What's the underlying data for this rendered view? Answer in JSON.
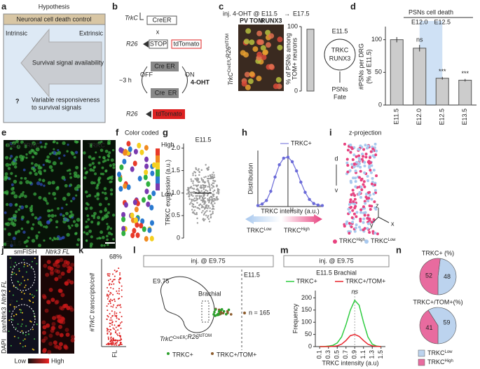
{
  "a": {
    "label": "a",
    "title": "Hypothesis",
    "header": "Neuronal cell death control",
    "intrinsic": "Intrinsic",
    "extrinsic": "Extrinsic",
    "arrow": "Survival signal availability",
    "question": "?",
    "note": [
      "Variable responsiveness",
      "to survival signals"
    ]
  },
  "b": {
    "label": "b",
    "trkc": "TrkC",
    "creer": "CreER",
    "cross": "x",
    "r26a": "R26",
    "stop": "STOP",
    "tdtomato_a": "tdTomato",
    "time": "~3 h",
    "off": "OFF",
    "on": "ON",
    "drug": "4-OHT",
    "cre_top": "Cre ER",
    "cre_bottom": [
      "Cre",
      "ER"
    ],
    "r26b": "R26",
    "tdtomato_b": "tdTomato"
  },
  "c": {
    "label": "c",
    "injection": "inj. 4-OHT @ E11.5",
    "arrow": "→",
    "end": "E17.5",
    "stains": [
      "PV",
      "TOM",
      "RUNX3"
    ],
    "genotype": [
      {
        "base": "TrkC",
        "sup": "CreER"
      },
      {
        "base": ";R26",
        "sup": "tdTOM"
      }
    ],
    "ylabel": [
      "% of PSNs among",
      "TOM+ neurons"
    ],
    "ylim": [
      0,
      100
    ],
    "yticks": [
      0,
      100
    ],
    "value": 96,
    "stage": "E11.5",
    "markers": [
      "TRKC",
      "RUNX3"
    ],
    "fate": [
      "PSNs",
      "Fate"
    ]
  },
  "d": {
    "label": "d",
    "title": "PSNs cell death",
    "shade": [
      "E12.0",
      "E12.5"
    ],
    "ylabel": [
      "#PSNs per DRG",
      "(% of E11.5)"
    ],
    "ylim": [
      0,
      120
    ],
    "yticks": [
      0,
      50,
      100
    ],
    "categories": [
      "E11.5",
      "E12.0",
      "E12.5",
      "E13.5"
    ],
    "values": [
      100,
      87,
      41,
      38
    ],
    "errors": [
      4,
      5,
      2,
      2
    ],
    "significance": [
      null,
      "ns",
      "***",
      "***"
    ]
  },
  "e": {
    "label": "e",
    "stain1": "ISL1",
    "stain2": "TRKC",
    "stain3": "TRKC",
    "stage": "E11.5"
  },
  "f": {
    "label": "f",
    "title": "Color coded",
    "high": "High",
    "low": "Low"
  },
  "g": {
    "label": "g",
    "stage": "E11.5",
    "ylabel": "TRKC expression (a.u.)",
    "ylim": [
      0,
      2.1
    ],
    "yticks": [
      0,
      0.5,
      {
        "value": 1,
        "label": "1.0"
      },
      1.5,
      {
        "value": 2,
        "label": "2.0"
      }
    ]
  },
  "h": {
    "label": "h",
    "legend": "TRKC+",
    "ylabel": "Distribution",
    "xlabel": "TRKC intensity (a.u.)",
    "mu": "μ",
    "values": [
      0.02,
      0.05,
      0.12,
      0.3,
      0.58,
      0.82,
      0.95,
      0.97,
      0.88,
      0.7,
      0.48,
      0.28,
      0.14,
      0.06,
      0.03,
      0.02
    ],
    "ylim": [
      0,
      1.1
    ],
    "low": {
      "base": "TRKC",
      "sup": "Low"
    },
    "high": {
      "base": "TRKC",
      "sup": "High"
    }
  },
  "i": {
    "label": "i",
    "title": "z-projection",
    "axes": [
      "d",
      "v",
      "x",
      "y",
      "z"
    ],
    "high": {
      "base": "TRKC",
      "sup": "High"
    },
    "low": {
      "base": "TRKC",
      "sup": "Low"
    }
  },
  "j": {
    "label": "j",
    "title": "smFISH",
    "stain": "Ntrk3 FL",
    "side": [
      "DAPI",
      "panNtrk3",
      "Ntrk3 FL"
    ],
    "insets": [
      "1",
      "2"
    ],
    "low": "Low",
    "high": "High"
  },
  "k": {
    "label": "k",
    "percent": "68%",
    "ylabel": "#TrkC transcripts/cell",
    "xlabel": "FL"
  },
  "l": {
    "label": "l",
    "injection": "inj. @ E9.75",
    "start": "E9.75",
    "end": "E11.5",
    "region": "Brachial",
    "n": "n = 165",
    "genotype": [
      {
        "base": "TrkC",
        "sup": "CreER"
      },
      {
        "base": ";R26",
        "sup": "tdTOM"
      }
    ],
    "legend": [
      "TRKC+",
      "TRKC+/TOM+"
    ]
  },
  "m": {
    "label": "m",
    "injection": "inj. @ E9.75",
    "subtitle": "E11.5 Brachial",
    "ns": "ns",
    "ylabel": "Frequency",
    "xlabel": "TRKC intensity (a.u)",
    "ylim": [
      0,
      230
    ],
    "yticks": [
      0,
      50,
      100,
      150,
      200
    ],
    "xlim": [
      0,
      1.6
    ],
    "xticks": [
      0.1,
      0.3,
      0.5,
      0.7,
      0.9,
      1.1,
      1.3,
      1.5
    ],
    "x": [
      0.1,
      0.2,
      0.3,
      0.4,
      0.5,
      0.6,
      0.7,
      0.8,
      0.9,
      1.0,
      1.1,
      1.2,
      1.3,
      1.4,
      1.5
    ],
    "series": [
      {
        "name": "TRKC+",
        "color": "#2ecc40",
        "values": [
          0,
          0,
          2,
          5,
          15,
          40,
          90,
          150,
          190,
          170,
          100,
          40,
          10,
          2,
          0
        ]
      },
      {
        "name": "TRKC+/TOM+",
        "color": "#e8242c",
        "values": [
          0,
          0,
          0,
          1,
          3,
          10,
          25,
          45,
          50,
          42,
          25,
          10,
          3,
          1,
          0
        ]
      }
    ]
  },
  "n": {
    "label": "n",
    "pies": [
      {
        "title": "TRKC+ (%)",
        "values": [
          48,
          52
        ]
      },
      {
        "title": "TRKC+/TOM+(%)",
        "values": [
          59,
          41
        ]
      }
    ],
    "colors": [
      "#bcd3ee",
      "#e86b9f"
    ],
    "legend": [
      {
        "base": "TRKC",
        "sup": "Low"
      },
      {
        "base": "TRKC",
        "sup": "High"
      }
    ]
  }
}
